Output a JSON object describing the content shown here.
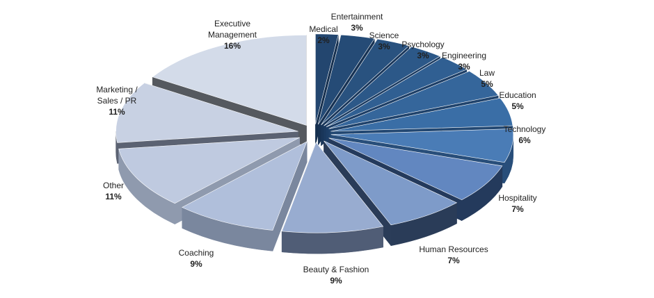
{
  "chart_data": {
    "type": "pie",
    "style": "3d-exploded",
    "title": "",
    "legend": "none",
    "slices": [
      {
        "label": "Medical",
        "label_lines": [
          "Medical"
        ],
        "value": 2,
        "value_label": "2%",
        "top": "#23466f",
        "side": "#16304f"
      },
      {
        "label": "Entertainment",
        "label_lines": [
          "Entertainment"
        ],
        "value": 3,
        "value_label": "3%",
        "top": "#254b76",
        "side": "#173253"
      },
      {
        "label": "Science",
        "label_lines": [
          "Science"
        ],
        "value": 3,
        "value_label": "3%",
        "top": "#29527f",
        "side": "#19365a"
      },
      {
        "label": "Psychology",
        "label_lines": [
          "Psychology"
        ],
        "value": 3,
        "value_label": "3%",
        "top": "#2c5888",
        "side": "#1b3a60"
      },
      {
        "label": "Engineering",
        "label_lines": [
          "Engineering"
        ],
        "value": 3,
        "value_label": "3%",
        "top": "#305f92",
        "side": "#1d3e66"
      },
      {
        "label": "Law",
        "label_lines": [
          "Law"
        ],
        "value": 5,
        "value_label": "5%",
        "top": "#35669b",
        "side": "#20436c"
      },
      {
        "label": "Education",
        "label_lines": [
          "Education"
        ],
        "value": 5,
        "value_label": "5%",
        "top": "#3a6ea6",
        "side": "#234872"
      },
      {
        "label": "Technology",
        "label_lines": [
          "Technology"
        ],
        "value": 6,
        "value_label": "6%",
        "top": "#4a7cb6",
        "side": "#284e7a"
      },
      {
        "label": "Hospitality",
        "label_lines": [
          "Hospitality"
        ],
        "value": 7,
        "value_label": "7%",
        "top": "#6287c0",
        "side": "#243a5c"
      },
      {
        "label": "Human Resources",
        "label_lines": [
          "Human  Resources"
        ],
        "value": 7,
        "value_label": "7%",
        "top": "#7e9bc9",
        "side": "#2a3c58"
      },
      {
        "label": "Beauty & Fashion",
        "label_lines": [
          "Beauty  &  Fashion"
        ],
        "value": 9,
        "value_label": "9%",
        "top": "#98acd0",
        "side": "#505d76"
      },
      {
        "label": "Coaching",
        "label_lines": [
          "Coaching"
        ],
        "value": 9,
        "value_label": "9%",
        "top": "#b0bfdb",
        "side": "#7a879e"
      },
      {
        "label": "Other",
        "label_lines": [
          "Other"
        ],
        "value": 11,
        "value_label": "11%",
        "top": "#bfcae0",
        "side": "#8f9aae"
      },
      {
        "label": "Marketing / Sales / PR",
        "label_lines": [
          "Marketing  /",
          "Sales  /  PR"
        ],
        "value": 11,
        "value_label": "11%",
        "top": "#c8d1e3",
        "side": "#5b6272"
      },
      {
        "label": "Executive Management",
        "label_lines": [
          "Executive",
          "Management"
        ],
        "value": 16,
        "value_label": "16%",
        "top": "#d3dbe9",
        "side": "#55595f"
      }
    ]
  }
}
